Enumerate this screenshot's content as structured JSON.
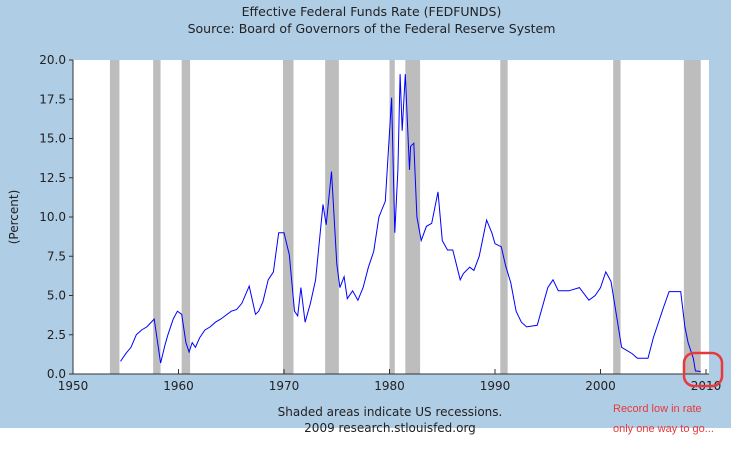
{
  "chart_data": {
    "type": "line",
    "title": "Effective Federal Funds Rate (FEDFUNDS)",
    "subtitle": "Source: Board of Governors of the Federal Reserve System",
    "ylabel": "(Percent)",
    "xlabel": "",
    "xlim": [
      1950,
      2010
    ],
    "ylim": [
      0,
      20
    ],
    "xticks": [
      "1950",
      "1960",
      "1970",
      "1980",
      "1990",
      "2000",
      "2010"
    ],
    "yticks": [
      "0.0",
      "2.5",
      "5.0",
      "7.5",
      "10.0",
      "12.5",
      "15.0",
      "17.5",
      "20.0"
    ],
    "grid": false,
    "line_color": "#0000ff",
    "recession_color": "#bdbdbd",
    "recessions": [
      [
        1953.5,
        1954.4
      ],
      [
        1957.6,
        1958.3
      ],
      [
        1960.3,
        1961.1
      ],
      [
        1969.9,
        1970.9
      ],
      [
        1973.9,
        1975.2
      ],
      [
        1980.0,
        1980.5
      ],
      [
        1981.5,
        1982.9
      ],
      [
        1990.5,
        1991.2
      ],
      [
        2001.2,
        2001.9
      ],
      [
        2007.9,
        2009.5
      ]
    ],
    "x": [
      1954.5,
      1955,
      1955.5,
      1956,
      1956.5,
      1957,
      1957.7,
      1958.3,
      1958.7,
      1959,
      1959.5,
      1959.9,
      1960.3,
      1960.7,
      1961,
      1961.3,
      1961.6,
      1962,
      1962.5,
      1963,
      1963.5,
      1964,
      1965,
      1965.5,
      1966,
      1966.7,
      1967.3,
      1967.6,
      1968,
      1968.5,
      1969,
      1969.5,
      1970,
      1970.5,
      1971,
      1971.3,
      1971.6,
      1972,
      1972.5,
      1973,
      1973.7,
      1974,
      1974.5,
      1975,
      1975.3,
      1975.7,
      1976,
      1976.5,
      1977,
      1977.5,
      1978,
      1978.5,
      1979,
      1979.6,
      1980.2,
      1980.5,
      1980.8,
      1981,
      1981.2,
      1981.5,
      1981.9,
      1982,
      1982.3,
      1982.6,
      1983,
      1983.5,
      1984,
      1984.6,
      1985,
      1985.5,
      1986,
      1986.7,
      1987,
      1987.6,
      1988,
      1988.5,
      1989.2,
      1989.7,
      1990,
      1990.6,
      1991,
      1991.5,
      1992,
      1992.5,
      1993,
      1994,
      1994.5,
      1995,
      1995.5,
      1996,
      1997,
      1998,
      1998.9,
      1999.5,
      2000,
      2000.5,
      2001,
      2001.5,
      2002,
      2003,
      2003.5,
      2004.5,
      2005,
      2006,
      2006.5,
      2007.6,
      2008,
      2008.3,
      2008.8,
      2009,
      2009.5
    ],
    "y": [
      0.8,
      1.3,
      1.7,
      2.5,
      2.8,
      3.0,
      3.5,
      0.7,
      1.8,
      2.5,
      3.5,
      4.0,
      3.8,
      2.0,
      1.4,
      2.0,
      1.7,
      2.3,
      2.8,
      3.0,
      3.3,
      3.5,
      4.0,
      4.1,
      4.5,
      5.6,
      3.8,
      4.0,
      4.6,
      6.0,
      6.5,
      9.0,
      9.0,
      7.6,
      4.0,
      3.7,
      5.5,
      3.3,
      4.5,
      6.0,
      10.8,
      9.5,
      12.9,
      7.0,
      5.5,
      6.2,
      4.8,
      5.3,
      4.7,
      5.5,
      6.8,
      7.8,
      10.0,
      11.0,
      17.6,
      9.0,
      13.0,
      19.1,
      15.5,
      19.1,
      13.0,
      14.5,
      14.7,
      10.0,
      8.5,
      9.4,
      9.6,
      11.6,
      8.5,
      7.9,
      7.9,
      6.0,
      6.4,
      6.8,
      6.6,
      7.5,
      9.8,
      9.0,
      8.3,
      8.1,
      6.9,
      5.8,
      4.0,
      3.3,
      3.0,
      3.1,
      4.3,
      5.5,
      6.0,
      5.3,
      5.3,
      5.5,
      4.7,
      5.0,
      5.5,
      6.5,
      5.9,
      3.8,
      1.7,
      1.3,
      1.0,
      1.0,
      2.3,
      4.3,
      5.25,
      5.25,
      3.0,
      2.0,
      1.0,
      0.2,
      0.16
    ],
    "annotation_color": "#e8383a"
  },
  "footer": {
    "line1": "Shaded areas indicate US recessions.",
    "line2": "2009 research.stlouisfed.org"
  },
  "annotation": {
    "line1": "Record low in rate",
    "line2": "only one way to go..."
  }
}
